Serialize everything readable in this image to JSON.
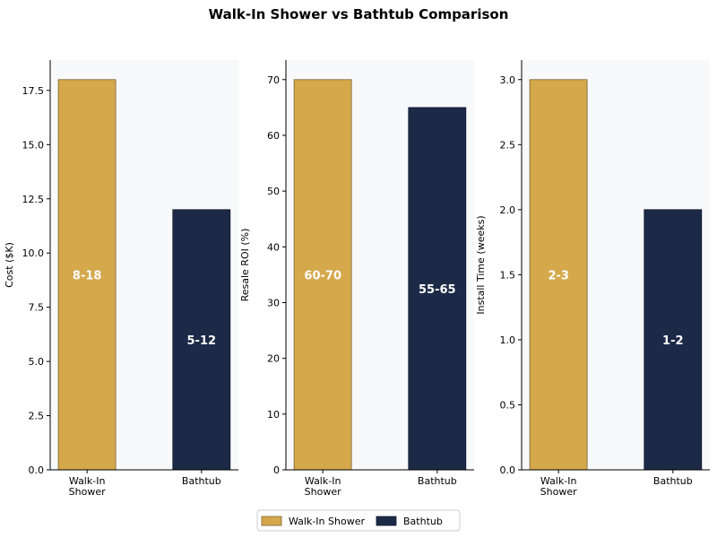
{
  "chart_data": {
    "title": "Walk-In Shower vs Bathtub Comparison",
    "type": "bar",
    "categories": [
      "Walk-In\nShower",
      "Bathtub"
    ],
    "colors": {
      "walk_in_shower": "#D4A84B",
      "bathtub": "#1C2A47",
      "panel_bg": "#F8F9FA"
    },
    "legend": {
      "placement": "bottom-center",
      "entries": [
        "Walk-In Shower",
        "Bathtub"
      ]
    },
    "panels": [
      {
        "ylabel": "Cost ($K)",
        "ylim": [
          0,
          18.9
        ],
        "yticks": [
          "0.0",
          "2.5",
          "5.0",
          "7.5",
          "10.0",
          "12.5",
          "15.0",
          "17.5"
        ],
        "values": [
          18,
          12
        ],
        "bar_labels": [
          "8-18",
          "5-12"
        ]
      },
      {
        "ylabel": "Resale ROI (%)",
        "ylim": [
          0,
          73.5
        ],
        "yticks": [
          "0",
          "10",
          "20",
          "30",
          "40",
          "50",
          "60",
          "70"
        ],
        "values": [
          70,
          65
        ],
        "bar_labels": [
          "60-70",
          "55-65"
        ]
      },
      {
        "ylabel": "Install Time (weeks)",
        "ylim": [
          0,
          3.15
        ],
        "yticks": [
          "0.0",
          "0.5",
          "1.0",
          "1.5",
          "2.0",
          "2.5",
          "3.0"
        ],
        "values": [
          3,
          2
        ],
        "bar_labels": [
          "2-3",
          "1-2"
        ]
      }
    ]
  }
}
